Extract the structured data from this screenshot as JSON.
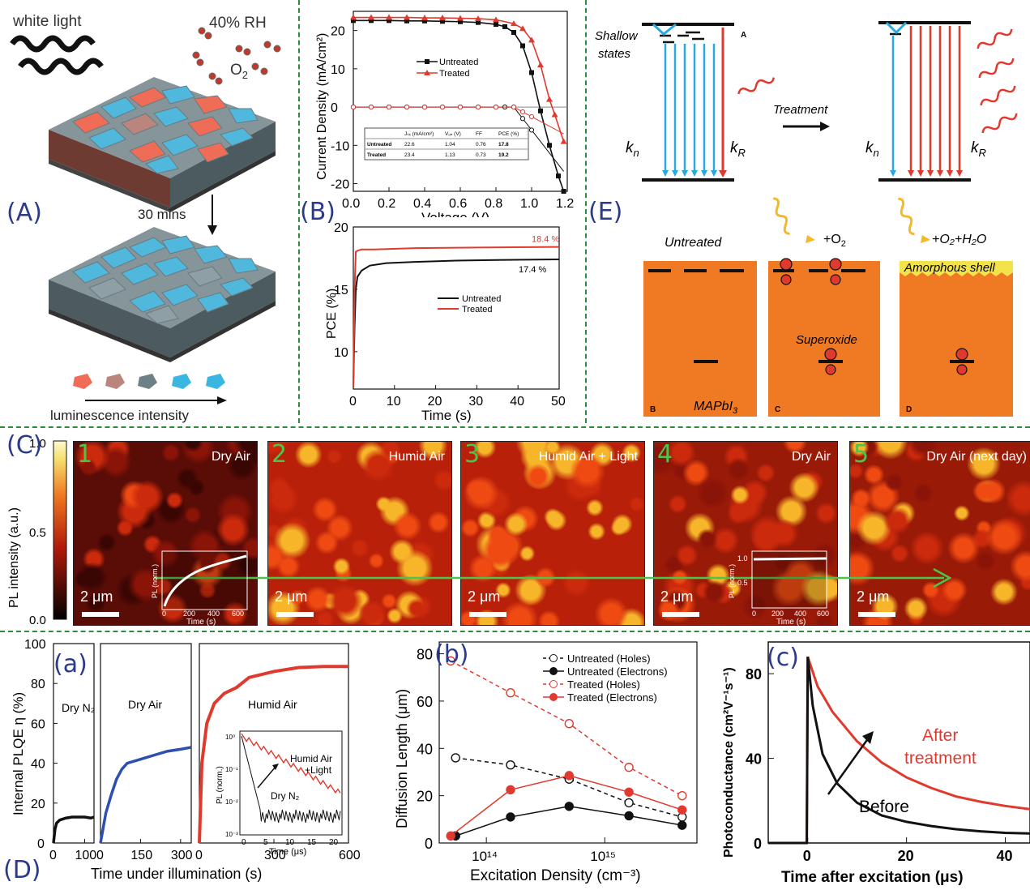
{
  "panel_labels": {
    "A": "(A)",
    "B": "(B)",
    "C": "(C)",
    "D": "(D)",
    "E": "(E)",
    "a": "(a)",
    "b": "(b)",
    "c": "(c)"
  },
  "colors": {
    "divider": "#2e8b3e",
    "label": "#2b3a8a",
    "untreated": "#111111",
    "treated": "#e03a2f",
    "blue": "#2c4fb0",
    "cyan": "#2aa9e0",
    "orange": "#f07a24"
  },
  "panelA": {
    "white_light": "white light",
    "rh": "40% RH",
    "o2": "O",
    "o2_sub": "2",
    "time": "30 mins",
    "scale_label": "luminescence intensity"
  },
  "jv_chart": {
    "chart_data": {
      "type": "line",
      "xlabel": "Voltage (V)",
      "ylabel": "Current Density (mA/cm²)",
      "xlim": [
        0,
        1.2
      ],
      "ylim": [
        -22,
        25
      ],
      "xticks": [
        "0.0",
        "0.2",
        "0.4",
        "0.6",
        "0.8",
        "1.0",
        "1.2"
      ],
      "yticks": [
        "20",
        "10",
        "0",
        "-10",
        "-20"
      ],
      "legend": [
        "Untreated",
        "Treated"
      ],
      "series": [
        {
          "name": "Untreated",
          "x": [
            0,
            0.1,
            0.2,
            0.3,
            0.4,
            0.5,
            0.6,
            0.7,
            0.8,
            0.85,
            0.9,
            0.95,
            1.0,
            1.05,
            1.1,
            1.15,
            1.18
          ],
          "y": [
            22.6,
            22.6,
            22.6,
            22.5,
            22.5,
            22.4,
            22.3,
            22.1,
            21.6,
            21,
            19.5,
            16,
            9,
            -1,
            -10,
            -18,
            -22
          ]
        },
        {
          "name": "Treated",
          "x": [
            0,
            0.1,
            0.2,
            0.3,
            0.4,
            0.5,
            0.6,
            0.7,
            0.8,
            0.9,
            0.95,
            1.0,
            1.05,
            1.1,
            1.13,
            1.18
          ],
          "y": [
            23.4,
            23.4,
            23.4,
            23.4,
            23.3,
            23.3,
            23.2,
            23.1,
            22.8,
            21.8,
            20.5,
            17.5,
            11,
            2,
            -2,
            -9
          ]
        }
      ]
    },
    "table": {
      "headers": [
        "",
        "Jₛₓ (mA/cm²)",
        "Vₒₙ (V)",
        "FF",
        "PCE (%)"
      ],
      "rows": [
        [
          "Untreated",
          "22.6",
          "1.04",
          "0.76",
          "17.8"
        ],
        [
          "Treated",
          "23.4",
          "1.13",
          "0.73",
          "19.2"
        ]
      ]
    }
  },
  "pce_chart": {
    "chart_data": {
      "type": "line",
      "xlabel": "Time (s)",
      "ylabel": "PCE (%)",
      "xlim": [
        0,
        50
      ],
      "ylim": [
        7,
        20
      ],
      "xticks": [
        "0",
        "10",
        "20",
        "30",
        "40",
        "50"
      ],
      "yticks": [
        "20",
        "15",
        "10"
      ],
      "legend": [
        "Untreated",
        "Treated"
      ],
      "annotations": [
        "18.4 %",
        "17.4 %"
      ],
      "series": [
        {
          "name": "Untreated",
          "x": [
            0,
            0.3,
            0.6,
            1,
            2,
            4,
            8,
            15,
            25,
            35,
            50
          ],
          "y": [
            7.2,
            12,
            15,
            16,
            16.5,
            16.9,
            17.1,
            17.2,
            17.3,
            17.35,
            17.4
          ]
        },
        {
          "name": "Treated",
          "x": [
            0,
            0.3,
            0.6,
            1,
            2,
            5,
            15,
            30,
            50
          ],
          "y": [
            7.2,
            15,
            18,
            18.1,
            18.2,
            18.2,
            18.3,
            18.35,
            18.4
          ]
        }
      ]
    }
  },
  "panelE": {
    "shallow": "Shallow",
    "states": "states",
    "kn": "k",
    "kn_sub": "n",
    "kr": "k",
    "kr_sub": "R",
    "treatment": "Treatment",
    "sub_A": "A",
    "sub_B": "B",
    "sub_C": "C",
    "sub_D": "D",
    "untreated": "Untreated",
    "plus_o2": "+O",
    "plus_o2_sub": "2",
    "plus_o2h2o": "+O₂+H₂O",
    "amorphous": "Amorphous shell",
    "superoxide": "Superoxide",
    "mapbi3": "MAPbI",
    "mapbi3_sub": "3"
  },
  "panelC": {
    "colorbar_label": "PL intensity (a.u.)",
    "colorbar_ticks": [
      "1.0",
      "0.5",
      "0.0"
    ],
    "scalebar": "2 μm",
    "maps": [
      {
        "num": "1",
        "title": "Dry Air"
      },
      {
        "num": "2",
        "title": "Humid Air"
      },
      {
        "num": "3",
        "title": "Humid Air + Light"
      },
      {
        "num": "4",
        "title": "Dry Air"
      },
      {
        "num": "5",
        "title": "Dry Air (next day)"
      }
    ],
    "inset_xlabel": "Time (s)",
    "inset_ylabel": "PL (norm.)",
    "inset_xticks": [
      "0",
      "200",
      "400",
      "600"
    ],
    "inset_yticks": [
      "1.0",
      "0.5"
    ]
  },
  "plqe_chart": {
    "chart_data": {
      "type": "line",
      "ylabel": "Internal PLQE η (%)",
      "xlabel": "Time under illumination (s)",
      "ylim": [
        0,
        100
      ],
      "yticks": [
        "100",
        "80",
        "60",
        "40",
        "20",
        "0"
      ],
      "subpanels": [
        {
          "title": "Dry N₂",
          "xticks": [
            "0",
            "100"
          ],
          "xlim": [
            0,
            130
          ],
          "color": "#111111",
          "x": [
            0,
            5,
            10,
            20,
            40,
            60,
            80,
            100,
            120,
            130
          ],
          "y": [
            0,
            7,
            10,
            11.5,
            12.5,
            13,
            13,
            13,
            12.5,
            13
          ]
        },
        {
          "title": "Dry Air",
          "xticks": [
            "0",
            "150",
            "300"
          ],
          "xlim": [
            0,
            340
          ],
          "color": "#2c4fb0",
          "x": [
            0,
            20,
            40,
            60,
            80,
            100,
            150,
            200,
            250,
            300,
            340
          ],
          "y": [
            0,
            15,
            24,
            32,
            37,
            40,
            42,
            44,
            46,
            47,
            48
          ]
        },
        {
          "title": "Humid Air",
          "xticks": [
            "0",
            "300",
            "600"
          ],
          "xlim": [
            0,
            600
          ],
          "color": "#e03a2f",
          "x": [
            0,
            10,
            30,
            60,
            100,
            150,
            200,
            300,
            400,
            500,
            600
          ],
          "y": [
            0,
            40,
            60,
            70,
            75,
            78,
            83,
            86,
            88,
            88.5,
            88.5
          ]
        }
      ]
    },
    "inset": {
      "xlabel": "Time (μs)",
      "ylabel": "PL (norm.)",
      "xticks": [
        "0",
        "5",
        "10",
        "15",
        "20"
      ],
      "yticks": [
        "10⁰",
        "10⁻¹",
        "10⁻²",
        "10⁻³"
      ],
      "label_humid": "Humid Air",
      "label_light": "+Light",
      "label_dry": "Dry N₂"
    }
  },
  "diffusion_chart": {
    "chart_data": {
      "type": "line",
      "xlabel": "Excitation Density (cm⁻³)",
      "ylabel": "Diffusion Length (μm)",
      "xscale": "log",
      "xlim": [
        40000000000000.0,
        6000000000000000.0
      ],
      "ylim": [
        0,
        85
      ],
      "xticks": [
        "10¹⁴",
        "10¹⁵"
      ],
      "yticks": [
        "80",
        "60",
        "40",
        "20",
        "0"
      ],
      "legend": [
        "Untreated (Holes)",
        "Untreated (Electrons)",
        "Treated    (Holes)",
        "Treated    (Electrons)"
      ],
      "series": [
        {
          "name": "Untreated (Holes)",
          "x": [
            55000000000000.0,
            160000000000000.0,
            500000000000000.0,
            1600000000000000.0,
            4500000000000000.0
          ],
          "y": [
            36,
            33,
            27,
            17,
            11
          ],
          "style": "dashed-open",
          "color": "#111111"
        },
        {
          "name": "Untreated (Electrons)",
          "x": [
            55000000000000.0,
            160000000000000.0,
            500000000000000.0,
            1600000000000000.0,
            4500000000000000.0
          ],
          "y": [
            3,
            11,
            15.5,
            11.5,
            7.5
          ],
          "style": "solid-filled",
          "color": "#111111"
        },
        {
          "name": "Treated (Holes)",
          "x": [
            50000000000000.0,
            160000000000000.0,
            500000000000000.0,
            1600000000000000.0,
            4500000000000000.0
          ],
          "y": [
            77,
            63.5,
            50.5,
            32,
            20
          ],
          "style": "dashed-open",
          "color": "#e03a2f"
        },
        {
          "name": "Treated (Electrons)",
          "x": [
            50000000000000.0,
            160000000000000.0,
            500000000000000.0,
            1600000000000000.0,
            4500000000000000.0
          ],
          "y": [
            3,
            22.5,
            28.5,
            21.5,
            14
          ],
          "style": "solid-filled",
          "color": "#e03a2f"
        }
      ]
    }
  },
  "photo_chart": {
    "chart_data": {
      "type": "line",
      "xlabel": "Time after excitation (μs)",
      "ylabel": "Photoconductance (cm²V⁻¹s⁻¹)",
      "xlim": [
        -8,
        45
      ],
      "ylim": [
        0,
        95
      ],
      "xticks": [
        "0",
        "20",
        "40"
      ],
      "yticks": [
        "80",
        "40",
        "0"
      ],
      "series": [
        {
          "name": "After treatment",
          "color": "#e03a2f",
          "x": [
            -8,
            -0.2,
            0,
            2,
            5,
            10,
            15,
            20,
            25,
            30,
            35,
            40,
            45
          ],
          "y": [
            0,
            0,
            88,
            74,
            62,
            48,
            38,
            31,
            26,
            22,
            19.5,
            17.5,
            16
          ]
        },
        {
          "name": "Before",
          "color": "#111111",
          "x": [
            -8,
            -0.2,
            0,
            1,
            3,
            6,
            10,
            15,
            20,
            25,
            30,
            35,
            40,
            45
          ],
          "y": [
            0,
            0,
            88,
            65,
            42,
            28,
            19,
            13,
            10,
            8,
            6.5,
            5.5,
            4.8,
            4.5
          ]
        }
      ],
      "annotations": [
        "After",
        "treatment",
        "Before"
      ]
    }
  }
}
